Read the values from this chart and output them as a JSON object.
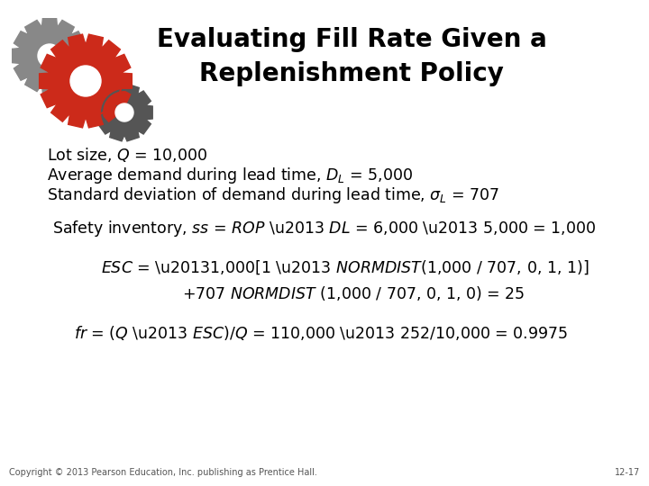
{
  "title_line1": "Evaluating Fill Rate Given a",
  "title_line2": "Replenishment Policy",
  "bg_color": "#ffffff",
  "title_color": "#000000",
  "text_color": "#000000",
  "footer_left": "Copyright © 2013 Pearson Education, Inc. publishing as Prentice Hall.",
  "footer_right": "12-17",
  "title_fontsize": 20,
  "body_fontsize": 12.5,
  "footer_fontsize": 7.0,
  "gear_red": "#cc2a1a",
  "gear_gray": "#888888",
  "gear_dark": "#555555"
}
